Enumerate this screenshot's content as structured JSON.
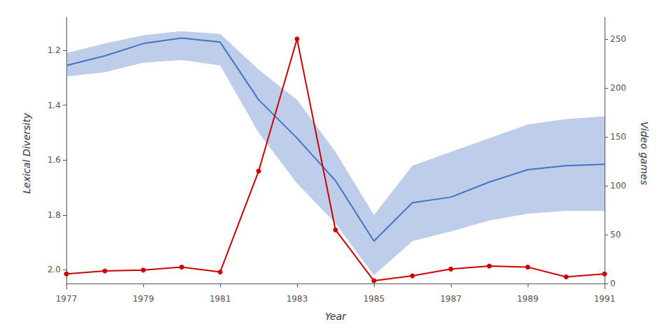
{
  "chart_data": {
    "type": "line",
    "xlabel": "Year",
    "ylabel": "Lexical Diversity",
    "y2label": "Video games",
    "x": [
      1977,
      1978,
      1979,
      1980,
      1981,
      1982,
      1983,
      1984,
      1985,
      1986,
      1987,
      1988,
      1989,
      1990,
      1991
    ],
    "series": [
      {
        "color": "#4472C4",
        "values": [
          1.255,
          1.22,
          1.175,
          1.155,
          1.17,
          1.38,
          1.52,
          1.675,
          1.895,
          1.755,
          1.735,
          1.68,
          1.635,
          1.62,
          1.615
        ],
        "upper": [
          1.21,
          1.175,
          1.145,
          1.13,
          1.14,
          1.27,
          1.38,
          1.57,
          1.8,
          1.62,
          1.57,
          1.52,
          1.47,
          1.45,
          1.44
        ],
        "lower": [
          1.295,
          1.28,
          1.245,
          1.235,
          1.255,
          1.5,
          1.685,
          1.83,
          2.02,
          1.895,
          1.86,
          1.82,
          1.795,
          1.785,
          1.785
        ]
      },
      {
        "color": "#CC0000",
        "marker": "circle",
        "axis": "y2",
        "values": [
          10,
          13,
          14,
          17,
          12,
          115,
          250,
          55,
          3,
          8,
          15,
          18,
          17,
          7,
          10
        ]
      }
    ],
    "xlim": [
      1977,
      1991
    ],
    "xticks": [
      1977,
      1979,
      1981,
      1983,
      1985,
      1987,
      1989,
      1991
    ],
    "ylim": [
      2.07,
      1.08
    ],
    "yticks": [
      1.2,
      1.4,
      1.6,
      1.8,
      {
        "value": 2.0,
        "label": "2.0"
      }
    ],
    "y2lim": [
      -5.5,
      272
    ],
    "y2ticks": [
      0,
      50,
      100,
      150,
      200,
      250
    ],
    "grid": false
  }
}
